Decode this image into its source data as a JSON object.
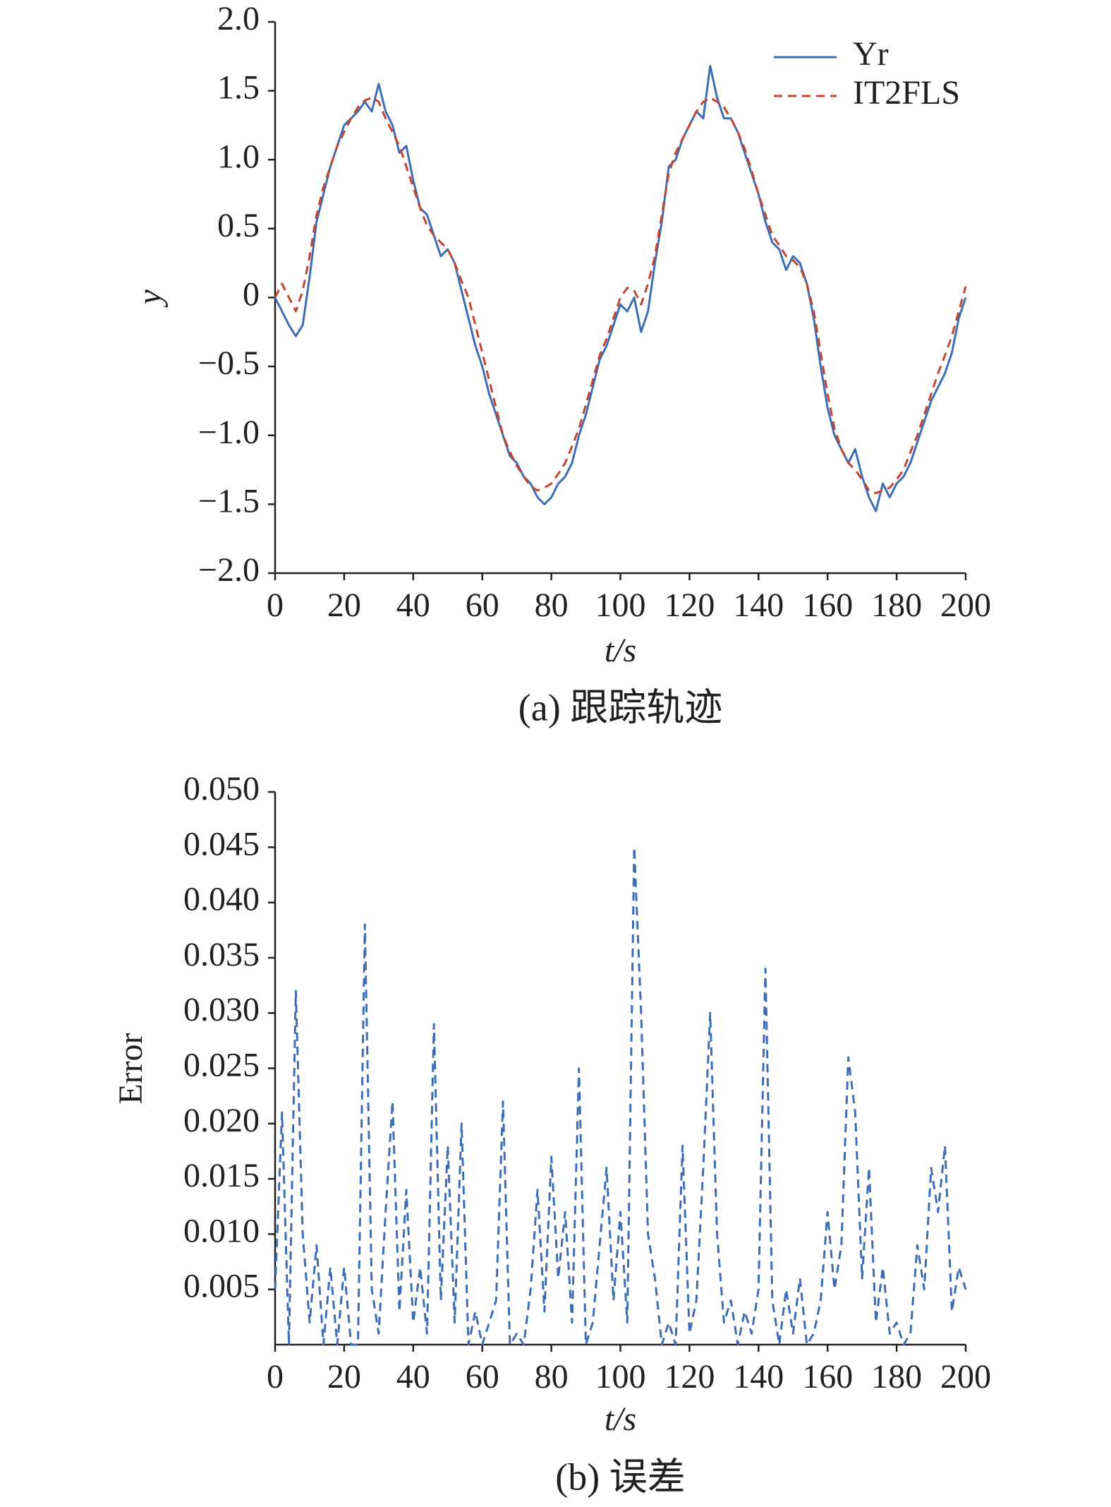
{
  "chart_data": [
    {
      "type": "line",
      "caption": "(a) 跟踪轨迹",
      "xlabel": "t/s",
      "ylabel": "y",
      "legend": "upper right",
      "x": [
        0,
        2,
        4,
        6,
        8,
        10,
        12,
        14,
        16,
        18,
        20,
        22,
        24,
        26,
        28,
        30,
        32,
        34,
        36,
        38,
        40,
        42,
        44,
        46,
        48,
        50,
        52,
        54,
        56,
        58,
        60,
        62,
        64,
        66,
        68,
        70,
        72,
        74,
        76,
        78,
        80,
        82,
        84,
        86,
        88,
        90,
        92,
        94,
        96,
        98,
        100,
        102,
        104,
        106,
        108,
        110,
        112,
        114,
        116,
        118,
        120,
        122,
        124,
        126,
        128,
        130,
        132,
        134,
        136,
        138,
        140,
        142,
        144,
        146,
        148,
        150,
        152,
        154,
        156,
        158,
        160,
        162,
        164,
        166,
        168,
        170,
        172,
        174,
        176,
        178,
        180,
        182,
        184,
        186,
        188,
        190,
        192,
        194,
        196,
        198,
        200
      ],
      "series": [
        {
          "name": "Yr",
          "color": "#3d6db5",
          "line_style": "solid",
          "values": [
            0,
            -0.1,
            -0.2,
            -0.28,
            -0.2,
            0.15,
            0.55,
            0.75,
            0.95,
            1.1,
            1.25,
            1.3,
            1.35,
            1.42,
            1.35,
            1.55,
            1.35,
            1.25,
            1.05,
            1.1,
            0.85,
            0.65,
            0.6,
            0.45,
            0.3,
            0.35,
            0.25,
            0.05,
            -0.15,
            -0.35,
            -0.5,
            -0.7,
            -0.85,
            -1.0,
            -1.15,
            -1.2,
            -1.3,
            -1.35,
            -1.45,
            -1.5,
            -1.45,
            -1.35,
            -1.3,
            -1.2,
            -1.0,
            -0.85,
            -0.65,
            -0.45,
            -0.35,
            -0.2,
            -0.05,
            -0.1,
            0.0,
            -0.25,
            -0.1,
            0.25,
            0.55,
            0.95,
            1.0,
            1.15,
            1.25,
            1.35,
            1.3,
            1.68,
            1.45,
            1.3,
            1.3,
            1.2,
            1.05,
            0.9,
            0.75,
            0.55,
            0.4,
            0.35,
            0.2,
            0.3,
            0.25,
            0.1,
            -0.15,
            -0.5,
            -0.8,
            -1.0,
            -1.1,
            -1.2,
            -1.1,
            -1.3,
            -1.45,
            -1.55,
            -1.35,
            -1.45,
            -1.35,
            -1.3,
            -1.2,
            -1.05,
            -0.9,
            -0.75,
            -0.65,
            -0.55,
            -0.4,
            -0.15,
            0.0
          ]
        },
        {
          "name": "IT2FLS",
          "color": "#c4452f",
          "line_style": "dashed",
          "values": [
            0.0,
            0.1,
            0.0,
            -0.1,
            0.05,
            0.3,
            0.6,
            0.8,
            0.95,
            1.1,
            1.2,
            1.3,
            1.38,
            1.43,
            1.45,
            1.42,
            1.3,
            1.2,
            1.1,
            0.95,
            0.8,
            0.65,
            0.52,
            0.45,
            0.4,
            0.35,
            0.25,
            0.12,
            0.0,
            -0.2,
            -0.4,
            -0.6,
            -0.8,
            -1.0,
            -1.12,
            -1.22,
            -1.3,
            -1.37,
            -1.4,
            -1.38,
            -1.35,
            -1.28,
            -1.2,
            -1.08,
            -0.95,
            -0.78,
            -0.6,
            -0.42,
            -0.3,
            -0.15,
            0.0,
            0.07,
            0.05,
            -0.05,
            0.1,
            0.3,
            0.6,
            0.9,
            1.05,
            1.15,
            1.25,
            1.35,
            1.42,
            1.45,
            1.42,
            1.38,
            1.3,
            1.2,
            1.08,
            0.92,
            0.75,
            0.6,
            0.45,
            0.38,
            0.3,
            0.27,
            0.22,
            0.1,
            -0.1,
            -0.4,
            -0.7,
            -0.95,
            -1.1,
            -1.2,
            -1.25,
            -1.32,
            -1.4,
            -1.42,
            -1.4,
            -1.38,
            -1.32,
            -1.25,
            -1.12,
            -1.0,
            -0.85,
            -0.7,
            -0.55,
            -0.42,
            -0.28,
            -0.1,
            0.08
          ]
        }
      ],
      "xlim": [
        0,
        200
      ],
      "xticks": [
        0,
        20,
        40,
        60,
        80,
        100,
        120,
        140,
        160,
        180,
        200
      ],
      "ylim": [
        -2,
        2
      ],
      "yticks": [
        {
          "value": -2,
          "label": "−2.0"
        },
        {
          "value": -1.5,
          "label": "−1.5"
        },
        {
          "value": -1,
          "label": "−1.0"
        },
        {
          "value": -0.5,
          "label": "−0.5"
        },
        0,
        0.5,
        {
          "value": 1,
          "label": "1.0"
        },
        1.5,
        {
          "value": 2,
          "label": "2.0"
        }
      ]
    },
    {
      "type": "line",
      "caption": "(b) 误差",
      "xlabel": "t/s",
      "ylabel": "Error",
      "color": "#3d6db5",
      "line_style": "dashed",
      "x": [
        0,
        2,
        4,
        6,
        8,
        10,
        12,
        14,
        16,
        18,
        20,
        22,
        24,
        26,
        28,
        30,
        32,
        34,
        36,
        38,
        40,
        42,
        44,
        46,
        48,
        50,
        52,
        54,
        56,
        58,
        60,
        62,
        64,
        66,
        68,
        70,
        72,
        74,
        76,
        78,
        80,
        82,
        84,
        86,
        88,
        90,
        92,
        94,
        96,
        98,
        100,
        102,
        104,
        106,
        108,
        110,
        112,
        114,
        116,
        118,
        120,
        122,
        124,
        126,
        128,
        130,
        132,
        134,
        136,
        138,
        140,
        142,
        144,
        146,
        148,
        150,
        152,
        154,
        156,
        158,
        160,
        162,
        164,
        166,
        168,
        170,
        172,
        174,
        176,
        178,
        180,
        182,
        184,
        186,
        188,
        190,
        192,
        194,
        196,
        198,
        200
      ],
      "values": [
        0.005,
        0.021,
        0.0,
        0.032,
        0.01,
        0.002,
        0.009,
        0.0,
        0.007,
        0.0,
        0.007,
        0.0,
        0.0,
        0.038,
        0.005,
        0.001,
        0.012,
        0.022,
        0.003,
        0.014,
        0.002,
        0.007,
        0.001,
        0.029,
        0.004,
        0.018,
        0.002,
        0.02,
        0.0,
        0.003,
        0.0,
        0.002,
        0.004,
        0.022,
        0.0,
        0.001,
        0.0,
        0.005,
        0.014,
        0.003,
        0.017,
        0.006,
        0.012,
        0.002,
        0.025,
        0.0,
        0.002,
        0.009,
        0.016,
        0.004,
        0.012,
        0.002,
        0.045,
        0.03,
        0.01,
        0.006,
        0.0,
        0.002,
        0.0,
        0.018,
        0.001,
        0.004,
        0.016,
        0.03,
        0.01,
        0.002,
        0.004,
        0.0,
        0.003,
        0.001,
        0.005,
        0.034,
        0.004,
        0.0,
        0.005,
        0.001,
        0.006,
        0.0,
        0.001,
        0.004,
        0.012,
        0.005,
        0.009,
        0.026,
        0.021,
        0.006,
        0.016,
        0.002,
        0.007,
        0.001,
        0.002,
        0.0,
        0.001,
        0.009,
        0.005,
        0.016,
        0.012,
        0.018,
        0.003,
        0.007,
        0.005
      ],
      "xlim": [
        0,
        200
      ],
      "xticks": [
        0,
        20,
        40,
        60,
        80,
        100,
        120,
        140,
        160,
        180,
        200
      ],
      "ylim": [
        0,
        0.05
      ],
      "yticks": [
        0.005,
        {
          "value": 0.01,
          "label": "0.010"
        },
        0.015,
        {
          "value": 0.02,
          "label": "0.020"
        },
        0.025,
        {
          "value": 0.03,
          "label": "0.030"
        },
        0.035,
        {
          "value": 0.04,
          "label": "0.040"
        },
        0.045,
        {
          "value": 0.05,
          "label": "0.050"
        }
      ]
    }
  ]
}
